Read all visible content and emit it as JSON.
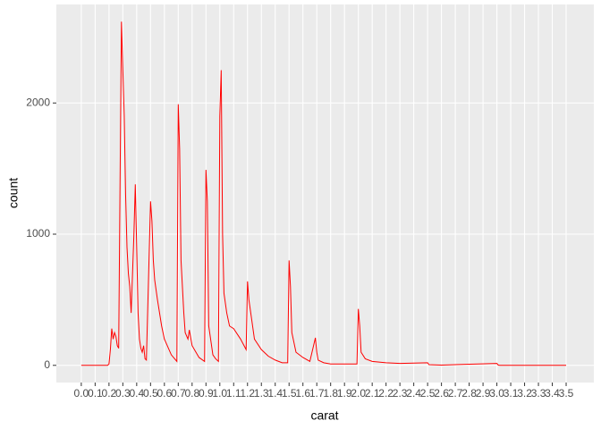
{
  "chart_data": {
    "type": "line",
    "x_label": "carat",
    "y_label": "count",
    "color": "#ff0000",
    "grid": true,
    "x": [
      0.0,
      0.1,
      0.19,
      0.2,
      0.21,
      0.22,
      0.23,
      0.24,
      0.25,
      0.26,
      0.27,
      0.28,
      0.29,
      0.3,
      0.31,
      0.32,
      0.33,
      0.34,
      0.35,
      0.36,
      0.37,
      0.38,
      0.39,
      0.4,
      0.41,
      0.42,
      0.43,
      0.44,
      0.45,
      0.46,
      0.47,
      0.5,
      0.51,
      0.52,
      0.53,
      0.55,
      0.58,
      0.6,
      0.65,
      0.69,
      0.7,
      0.71,
      0.72,
      0.74,
      0.75,
      0.77,
      0.78,
      0.8,
      0.85,
      0.89,
      0.9,
      0.91,
      0.92,
      0.95,
      0.97,
      0.99,
      1.0,
      1.01,
      1.02,
      1.03,
      1.05,
      1.07,
      1.1,
      1.15,
      1.19,
      1.2,
      1.21,
      1.25,
      1.3,
      1.35,
      1.4,
      1.45,
      1.49,
      1.5,
      1.51,
      1.52,
      1.55,
      1.6,
      1.65,
      1.69,
      1.7,
      1.71,
      1.75,
      1.8,
      1.9,
      1.99,
      2.0,
      2.01,
      2.02,
      2.05,
      2.1,
      2.2,
      2.3,
      2.5,
      2.51,
      2.6,
      3.0,
      3.01,
      3.02,
      3.5
    ],
    "values": [
      0,
      0,
      0,
      10,
      120,
      280,
      200,
      250,
      220,
      150,
      130,
      1400,
      2620,
      2250,
      1900,
      1300,
      900,
      700,
      600,
      400,
      700,
      1000,
      1380,
      900,
      400,
      200,
      130,
      100,
      150,
      50,
      40,
      1250,
      1100,
      800,
      650,
      500,
      300,
      200,
      80,
      30,
      1990,
      1650,
      800,
      400,
      250,
      200,
      270,
      150,
      60,
      30,
      1490,
      1250,
      300,
      80,
      50,
      30,
      1900,
      2250,
      1000,
      550,
      400,
      300,
      280,
      200,
      120,
      640,
      500,
      200,
      120,
      70,
      40,
      20,
      20,
      800,
      600,
      250,
      100,
      60,
      30,
      210,
      100,
      40,
      20,
      10,
      10,
      10,
      430,
      300,
      100,
      50,
      30,
      20,
      15,
      20,
      5,
      2,
      15,
      2,
      0,
      0
    ],
    "xlim": [
      -0.18,
      3.7
    ],
    "ylim": [
      -131,
      2751
    ],
    "xticks": [
      {
        "value": 0,
        "label": "0.0"
      },
      0.1,
      0.2,
      0.3,
      0.4,
      0.5,
      0.6,
      0.7,
      0.8,
      0.9,
      {
        "value": 1,
        "label": "1.0"
      },
      1.1,
      1.2,
      1.3,
      1.4,
      1.5,
      1.6,
      1.7,
      1.8,
      1.9,
      {
        "value": 2,
        "label": "2.0"
      },
      2.1,
      2.2,
      2.3,
      2.4,
      2.5,
      2.6,
      2.7,
      2.8,
      2.9,
      {
        "value": 3,
        "label": "3.0"
      },
      3.1,
      3.2,
      3.3,
      3.4,
      3.5
    ],
    "yticks": [
      0,
      1000,
      2000
    ]
  }
}
